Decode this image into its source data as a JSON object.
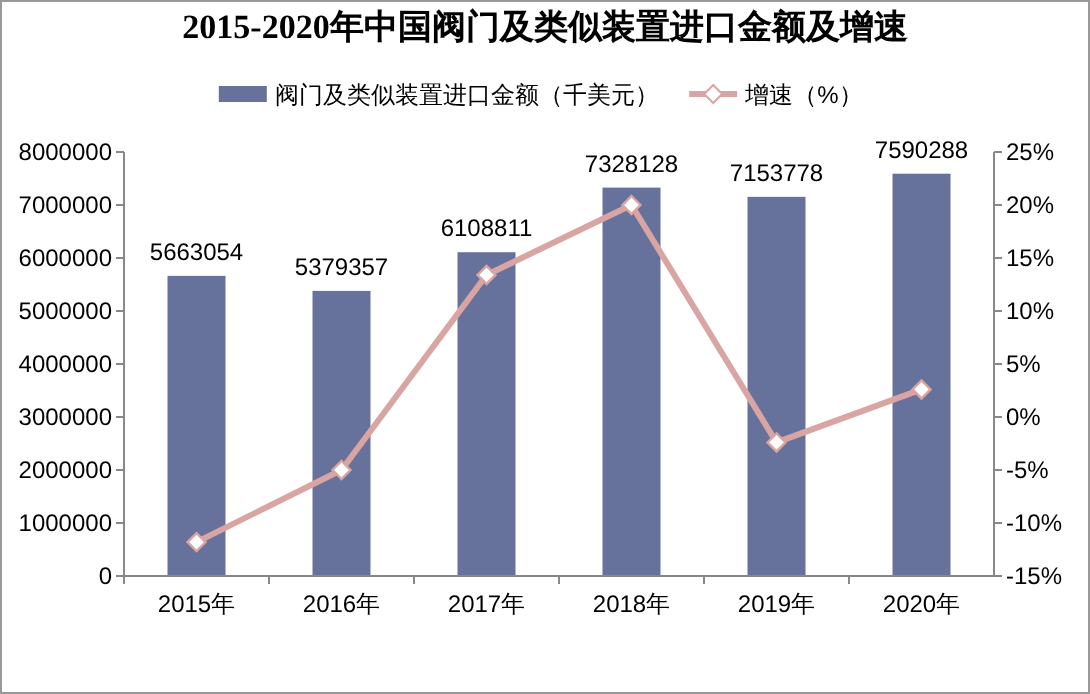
{
  "chart_data": {
    "type": "bar",
    "title": "2015-2020年中国阀门及类似装置进口金额及增速",
    "categories": [
      "2015年",
      "2016年",
      "2017年",
      "2018年",
      "2019年",
      "2020年"
    ],
    "series": [
      {
        "name": "阀门及类似装置进口金额（千美元）",
        "color": "#66729b",
        "values": [
          5663054,
          5379357,
          6108811,
          7328128,
          7153778,
          7590288
        ],
        "value_labels": [
          "5663054",
          "5379357",
          "6108811",
          "7328128",
          "7153778",
          "7590288"
        ]
      },
      {
        "name": "增速（%）",
        "type": "line",
        "axis": "y2",
        "color": "#d8a5a3",
        "marker": "diamond",
        "values": [
          -11.8,
          -5.0,
          13.4,
          20.0,
          -2.4,
          2.6
        ]
      }
    ],
    "ylim": [
      0,
      8000000
    ],
    "yticks": [
      0,
      1000000,
      2000000,
      3000000,
      4000000,
      5000000,
      6000000,
      7000000,
      8000000
    ],
    "y2lim": [
      -15,
      25
    ],
    "y2ticks": [
      {
        "value": -15,
        "label": "-15%"
      },
      {
        "value": -10,
        "label": "-10%"
      },
      {
        "value": -5,
        "label": "-5%"
      },
      {
        "value": 0,
        "label": "0%"
      },
      {
        "value": 5,
        "label": "5%"
      },
      {
        "value": 10,
        "label": "10%"
      },
      {
        "value": 15,
        "label": "15%"
      },
      {
        "value": 20,
        "label": "20%"
      },
      {
        "value": 25,
        "label": "25%"
      }
    ],
    "legend": "top",
    "grid": false
  }
}
